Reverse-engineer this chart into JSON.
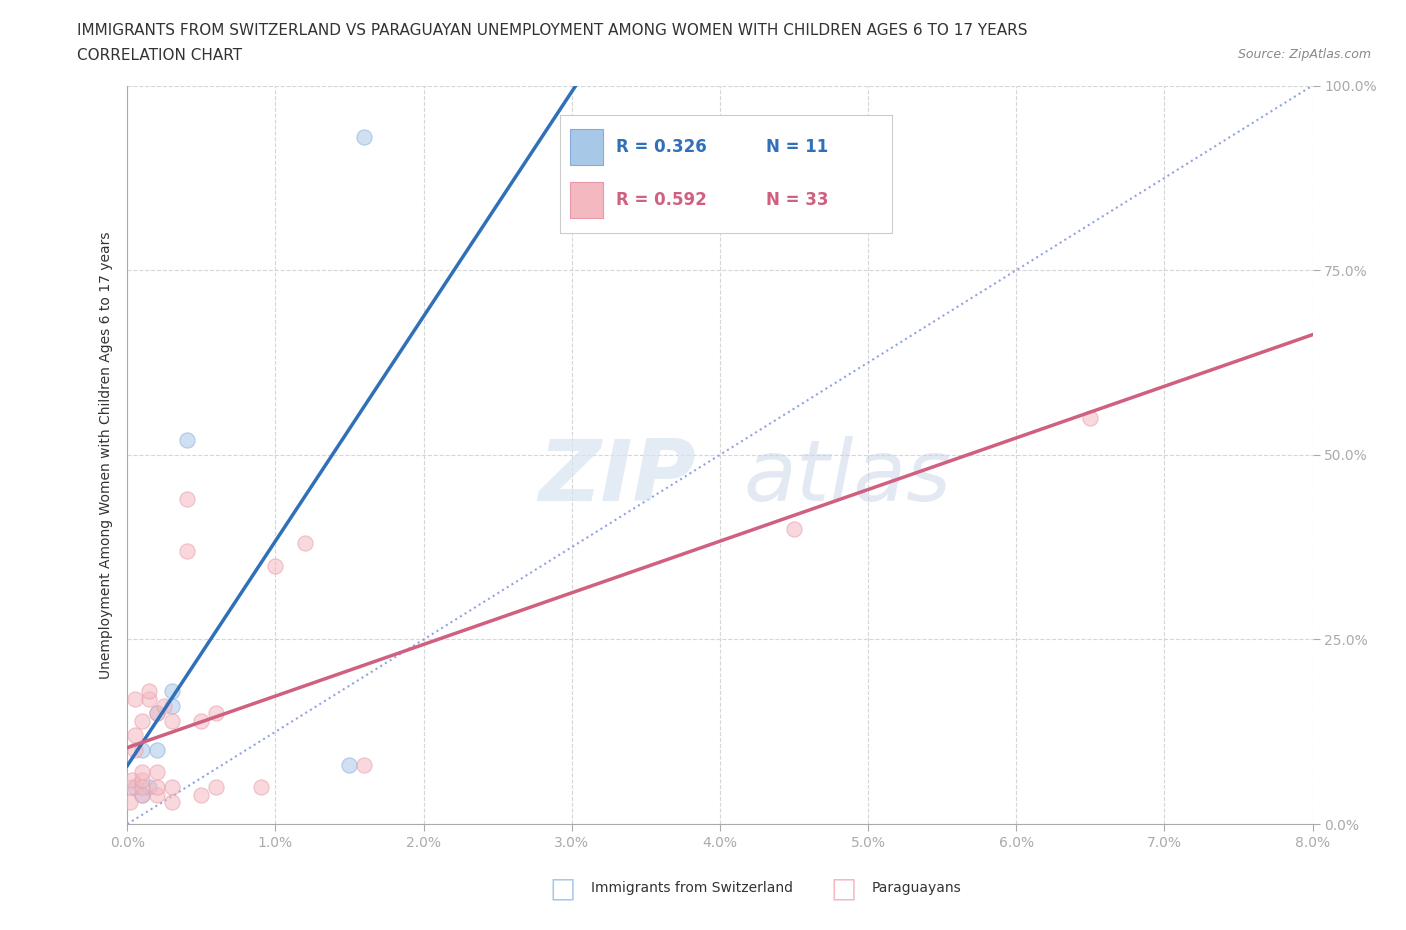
{
  "title_line1": "IMMIGRANTS FROM SWITZERLAND VS PARAGUAYAN UNEMPLOYMENT AMONG WOMEN WITH CHILDREN AGES 6 TO 17 YEARS",
  "title_line2": "CORRELATION CHART",
  "source": "Source: ZipAtlas.com",
  "ylabel": "Unemployment Among Women with Children Ages 6 to 17 years",
  "xlim": [
    0.0,
    0.08
  ],
  "ylim": [
    0.0,
    1.0
  ],
  "xticks": [
    0.0,
    0.01,
    0.02,
    0.03,
    0.04,
    0.05,
    0.06,
    0.07,
    0.08
  ],
  "xticklabels": [
    "0.0%",
    "1.0%",
    "2.0%",
    "3.0%",
    "4.0%",
    "5.0%",
    "6.0%",
    "7.0%",
    "8.0%"
  ],
  "yticks": [
    0.0,
    0.25,
    0.5,
    0.75,
    1.0
  ],
  "yticklabels": [
    "0.0%",
    "25.0%",
    "50.0%",
    "75.0%",
    "100.0%"
  ],
  "swiss_color": "#a8c8e8",
  "paraguay_color": "#f4b8c0",
  "swiss_line_color": "#3070b8",
  "paraguay_line_color": "#d06080",
  "swiss_R": 0.326,
  "swiss_N": 11,
  "paraguay_R": 0.592,
  "paraguay_N": 33,
  "swiss_scatter_x": [
    0.0005,
    0.001,
    0.001,
    0.0015,
    0.002,
    0.002,
    0.003,
    0.003,
    0.004,
    0.015,
    0.016
  ],
  "swiss_scatter_y": [
    0.05,
    0.04,
    0.1,
    0.05,
    0.1,
    0.15,
    0.16,
    0.18,
    0.52,
    0.08,
    0.93
  ],
  "paraguay_scatter_x": [
    0.0002,
    0.0003,
    0.0003,
    0.0005,
    0.0005,
    0.0005,
    0.001,
    0.001,
    0.001,
    0.001,
    0.001,
    0.0015,
    0.0015,
    0.002,
    0.002,
    0.002,
    0.002,
    0.0025,
    0.003,
    0.003,
    0.003,
    0.004,
    0.004,
    0.005,
    0.005,
    0.006,
    0.006,
    0.009,
    0.01,
    0.012,
    0.016,
    0.045,
    0.065
  ],
  "paraguay_scatter_y": [
    0.03,
    0.05,
    0.06,
    0.1,
    0.12,
    0.17,
    0.04,
    0.05,
    0.06,
    0.07,
    0.14,
    0.17,
    0.18,
    0.04,
    0.05,
    0.07,
    0.15,
    0.16,
    0.03,
    0.05,
    0.14,
    0.37,
    0.44,
    0.04,
    0.14,
    0.05,
    0.15,
    0.05,
    0.35,
    0.38,
    0.08,
    0.4,
    0.55
  ],
  "marker_size": 120,
  "marker_alpha": 0.55,
  "grid_color": "#cccccc",
  "background_color": "#ffffff",
  "watermark_zip": "ZIP",
  "watermark_atlas": "atlas",
  "legend_R1": "R = 0.326",
  "legend_N1": "N =  11",
  "legend_R2": "R = 0.592",
  "legend_N2": "N = 33",
  "title_fontsize": 11,
  "subtitle_fontsize": 11,
  "source_fontsize": 9,
  "axis_label_fontsize": 10,
  "tick_fontsize": 10,
  "legend_fontsize": 12
}
